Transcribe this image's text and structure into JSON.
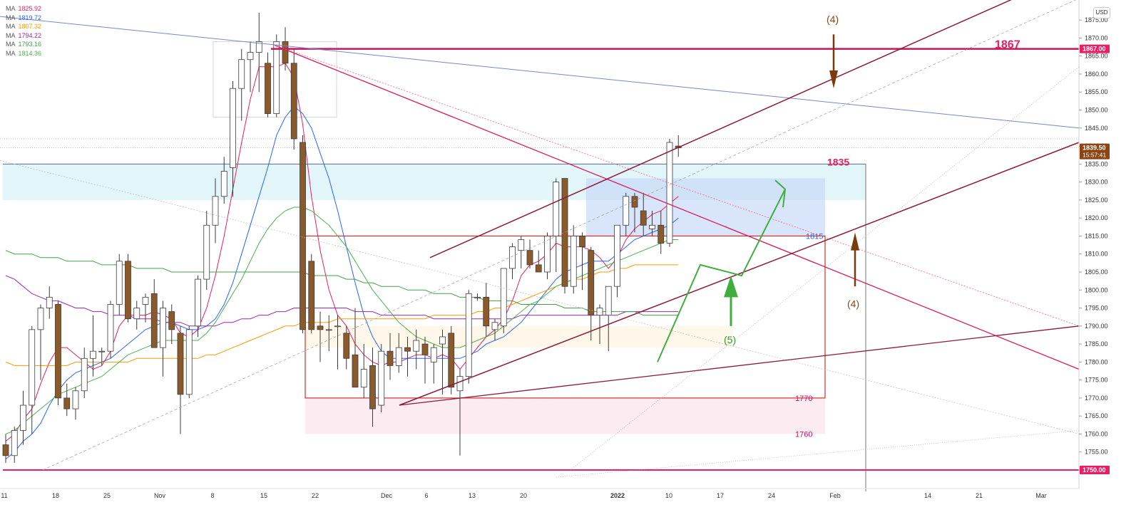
{
  "currency": "USD",
  "legend": [
    {
      "label": "MA",
      "value": "1825.92",
      "color": "#e91e63"
    },
    {
      "label": "MA",
      "value": "1819.72",
      "color": "#2962ff"
    },
    {
      "label": "MA",
      "value": "1807.32",
      "color": "#ff9800"
    },
    {
      "label": "MA",
      "value": "1794.22",
      "color": "#9c27b0"
    },
    {
      "label": "MA",
      "value": "1793.16",
      "color": "#43a047"
    },
    {
      "label": "MA",
      "value": "1814.36",
      "color": "#4caf50"
    }
  ],
  "price_tags": [
    {
      "text": "1867.00",
      "price": 1867,
      "bg": "#e91e63",
      "fg": "#ffffff"
    },
    {
      "text": "1839.50",
      "sub": "15:57:41",
      "price": 1839.5,
      "bg": "#8b4513",
      "fg": "#ffffff"
    },
    {
      "text": "1750.00",
      "price": 1750,
      "bg": "#e91e63",
      "fg": "#ffffff"
    }
  ],
  "annotations": [
    {
      "text": "1867",
      "color": "#e91e63"
    },
    {
      "text": "1835",
      "color": "#e91e63"
    },
    {
      "text": "1815",
      "color": "#2962ff"
    },
    {
      "text": "1770",
      "color": "#c2185b"
    },
    {
      "text": "1760",
      "color": "#c2185b"
    },
    {
      "text": "(4)",
      "color": "#8b4513"
    },
    {
      "text": "(4)",
      "color": "#8b4513"
    },
    {
      "text": "(5)",
      "color": "#2e9e2e"
    }
  ],
  "chart_data": {
    "type": "candlestick",
    "ylim": [
      1748,
      1880
    ],
    "y_ticks": [
      1750,
      1755,
      1760,
      1765,
      1770,
      1775,
      1780,
      1785,
      1790,
      1795,
      1800,
      1805,
      1810,
      1815,
      1820,
      1825,
      1830,
      1835,
      1840,
      1845,
      1850,
      1855,
      1860,
      1865,
      1870,
      1875
    ],
    "x_ticks": [
      "11",
      "18",
      "25",
      "Nov",
      "8",
      "15",
      "22",
      "Dec",
      "6",
      "13",
      "20",
      "2022",
      "10",
      "17",
      "24",
      "Feb",
      "14",
      "21",
      "Mar"
    ],
    "candles": [
      {
        "o": 1757,
        "h": 1760,
        "l": 1752,
        "c": 1754
      },
      {
        "o": 1754,
        "h": 1762,
        "l": 1752,
        "c": 1761
      },
      {
        "o": 1761,
        "h": 1772,
        "l": 1757,
        "c": 1768
      },
      {
        "o": 1768,
        "h": 1790,
        "l": 1760,
        "c": 1789
      },
      {
        "o": 1789,
        "h": 1796,
        "l": 1775,
        "c": 1795
      },
      {
        "o": 1795,
        "h": 1801,
        "l": 1792,
        "c": 1798
      },
      {
        "o": 1796,
        "h": 1797,
        "l": 1768,
        "c": 1770
      },
      {
        "o": 1770,
        "h": 1774,
        "l": 1765,
        "c": 1767
      },
      {
        "o": 1767,
        "h": 1773,
        "l": 1764,
        "c": 1772
      },
      {
        "o": 1772,
        "h": 1784,
        "l": 1770,
        "c": 1781
      },
      {
        "o": 1781,
        "h": 1793,
        "l": 1776,
        "c": 1783
      },
      {
        "o": 1783,
        "h": 1784,
        "l": 1779,
        "c": 1783
      },
      {
        "o": 1783,
        "h": 1797,
        "l": 1781,
        "c": 1796
      },
      {
        "o": 1796,
        "h": 1810,
        "l": 1793,
        "c": 1808
      },
      {
        "o": 1808,
        "h": 1810,
        "l": 1791,
        "c": 1792
      },
      {
        "o": 1792,
        "h": 1797,
        "l": 1789,
        "c": 1795
      },
      {
        "o": 1796,
        "h": 1799,
        "l": 1791,
        "c": 1798
      },
      {
        "o": 1799,
        "h": 1803,
        "l": 1784,
        "c": 1784
      },
      {
        "o": 1784,
        "h": 1797,
        "l": 1776,
        "c": 1795
      },
      {
        "o": 1794,
        "h": 1796,
        "l": 1785,
        "c": 1789
      },
      {
        "o": 1788,
        "h": 1790,
        "l": 1760,
        "c": 1771
      },
      {
        "o": 1771,
        "h": 1790,
        "l": 1770,
        "c": 1789
      },
      {
        "o": 1790,
        "h": 1804,
        "l": 1787,
        "c": 1803
      },
      {
        "o": 1803,
        "h": 1822,
        "l": 1800,
        "c": 1818
      },
      {
        "o": 1818,
        "h": 1831,
        "l": 1813,
        "c": 1826
      },
      {
        "o": 1826,
        "h": 1837,
        "l": 1824,
        "c": 1833
      },
      {
        "o": 1834,
        "h": 1858,
        "l": 1826,
        "c": 1856
      },
      {
        "o": 1856,
        "h": 1867,
        "l": 1847,
        "c": 1864
      },
      {
        "o": 1864,
        "h": 1869,
        "l": 1855,
        "c": 1866
      },
      {
        "o": 1866,
        "h": 1877,
        "l": 1855,
        "c": 1869
      },
      {
        "o": 1863,
        "h": 1866,
        "l": 1848,
        "c": 1849
      },
      {
        "o": 1849,
        "h": 1871,
        "l": 1848,
        "c": 1869
      },
      {
        "o": 1869,
        "h": 1873,
        "l": 1861,
        "c": 1863
      },
      {
        "o": 1863,
        "h": 1867,
        "l": 1839,
        "c": 1842
      },
      {
        "o": 1841,
        "h": 1843,
        "l": 1788,
        "c": 1789
      },
      {
        "o": 1808,
        "h": 1810,
        "l": 1788,
        "c": 1789
      },
      {
        "o": 1790,
        "h": 1794,
        "l": 1780,
        "c": 1789
      },
      {
        "o": 1789,
        "h": 1793,
        "l": 1783,
        "c": 1789
      },
      {
        "o": 1790,
        "h": 1793,
        "l": 1778,
        "c": 1790
      },
      {
        "o": 1788,
        "h": 1790,
        "l": 1778,
        "c": 1781
      },
      {
        "o": 1782,
        "h": 1795,
        "l": 1774,
        "c": 1773
      },
      {
        "o": 1773,
        "h": 1785,
        "l": 1770,
        "c": 1778
      },
      {
        "o": 1779,
        "h": 1784,
        "l": 1762,
        "c": 1767
      },
      {
        "o": 1768,
        "h": 1785,
        "l": 1766,
        "c": 1783
      },
      {
        "o": 1783,
        "h": 1788,
        "l": 1775,
        "c": 1779
      },
      {
        "o": 1779,
        "h": 1788,
        "l": 1777,
        "c": 1784
      },
      {
        "o": 1784,
        "h": 1787,
        "l": 1776,
        "c": 1783
      },
      {
        "o": 1783,
        "h": 1789,
        "l": 1778,
        "c": 1786
      },
      {
        "o": 1785,
        "h": 1787,
        "l": 1774,
        "c": 1782
      },
      {
        "o": 1780,
        "h": 1785,
        "l": 1774,
        "c": 1784
      },
      {
        "o": 1785,
        "h": 1789,
        "l": 1771,
        "c": 1787
      },
      {
        "o": 1788,
        "h": 1790,
        "l": 1771,
        "c": 1773
      },
      {
        "o": 1772,
        "h": 1778,
        "l": 1754,
        "c": 1776
      },
      {
        "o": 1776,
        "h": 1800,
        "l": 1774,
        "c": 1799
      },
      {
        "o": 1798,
        "h": 1799,
        "l": 1797,
        "c": 1798
      },
      {
        "o": 1798,
        "h": 1802,
        "l": 1787,
        "c": 1790
      },
      {
        "o": 1789,
        "h": 1792,
        "l": 1786,
        "c": 1791
      },
      {
        "o": 1790,
        "h": 1806,
        "l": 1788,
        "c": 1806
      },
      {
        "o": 1806,
        "h": 1813,
        "l": 1803,
        "c": 1812
      },
      {
        "o": 1811,
        "h": 1815,
        "l": 1806,
        "c": 1814
      },
      {
        "o": 1811,
        "h": 1814,
        "l": 1806,
        "c": 1807
      },
      {
        "o": 1807,
        "h": 1811,
        "l": 1805,
        "c": 1805
      },
      {
        "o": 1805,
        "h": 1816,
        "l": 1803,
        "c": 1815
      },
      {
        "o": 1815,
        "h": 1831,
        "l": 1805,
        "c": 1830
      },
      {
        "o": 1831,
        "h": 1831,
        "l": 1799,
        "c": 1801
      },
      {
        "o": 1801,
        "h": 1818,
        "l": 1799,
        "c": 1815
      },
      {
        "o": 1815,
        "h": 1816,
        "l": 1800,
        "c": 1812
      },
      {
        "o": 1811,
        "h": 1812,
        "l": 1786,
        "c": 1793
      },
      {
        "o": 1793,
        "h": 1796,
        "l": 1785,
        "c": 1795
      },
      {
        "o": 1793,
        "h": 1801,
        "l": 1783,
        "c": 1801
      },
      {
        "o": 1801,
        "h": 1817,
        "l": 1798,
        "c": 1818
      },
      {
        "o": 1818,
        "h": 1827,
        "l": 1815,
        "c": 1826
      },
      {
        "o": 1826,
        "h": 1827,
        "l": 1816,
        "c": 1823
      },
      {
        "o": 1822,
        "h": 1827,
        "l": 1815,
        "c": 1818
      },
      {
        "o": 1817,
        "h": 1822,
        "l": 1815,
        "c": 1818
      },
      {
        "o": 1818,
        "h": 1822,
        "l": 1810,
        "c": 1813
      },
      {
        "o": 1813,
        "h": 1842,
        "l": 1812,
        "c": 1841
      },
      {
        "o": 1840,
        "h": 1843,
        "l": 1837,
        "c": 1839.5
      }
    ],
    "moving_averages": [
      {
        "color": "#e91e63",
        "values": [
          1758,
          1760,
          1764,
          1767,
          1774,
          1780,
          1784,
          1784,
          1782,
          1780,
          1778,
          1779,
          1783,
          1790,
          1793,
          1793,
          1793,
          1794,
          1793,
          1792,
          1788,
          1787,
          1789,
          1795,
          1804,
          1815,
          1828,
          1841,
          1853,
          1862,
          1862,
          1862,
          1863,
          1859,
          1846,
          1826,
          1811,
          1800,
          1793,
          1790,
          1785,
          1782,
          1780,
          1779,
          1780,
          1780,
          1781,
          1782,
          1782,
          1781,
          1782,
          1781,
          1778,
          1781,
          1784,
          1787,
          1789,
          1792,
          1797,
          1804,
          1807,
          1808,
          1810,
          1813,
          1812,
          1812,
          1812,
          1811,
          1809,
          1806,
          1809,
          1814,
          1817,
          1819,
          1821,
          1822,
          1824,
          1826
        ]
      },
      {
        "color": "#2962ff",
        "values": [
          1753,
          1755,
          1758,
          1760,
          1763,
          1768,
          1772,
          1775,
          1777,
          1778,
          1779,
          1780,
          1781,
          1783,
          1785,
          1787,
          1789,
          1790,
          1791,
          1791,
          1790,
          1789,
          1789,
          1790,
          1792,
          1796,
          1802,
          1810,
          1818,
          1826,
          1834,
          1843,
          1848,
          1851,
          1849,
          1845,
          1838,
          1831,
          1822,
          1812,
          1802,
          1793,
          1787,
          1783,
          1781,
          1781,
          1781,
          1781,
          1781,
          1781,
          1781,
          1781,
          1781,
          1782,
          1783,
          1785,
          1786,
          1787,
          1789,
          1791,
          1794,
          1797,
          1800,
          1803,
          1805,
          1806,
          1807,
          1808,
          1808,
          1808,
          1810,
          1812,
          1814,
          1815,
          1816,
          1817,
          1818,
          1820
        ]
      },
      {
        "color": "#ff9800",
        "values": [
          1780,
          1779,
          1779,
          1779,
          1779,
          1779,
          1779,
          1779,
          1780,
          1780,
          1780,
          1780,
          1780,
          1780,
          1780,
          1781,
          1781,
          1781,
          1781,
          1781,
          1781,
          1781,
          1781,
          1782,
          1782,
          1783,
          1784,
          1785,
          1786,
          1787,
          1788,
          1789,
          1790,
          1790,
          1791,
          1791,
          1791,
          1791,
          1792,
          1792,
          1792,
          1792,
          1792,
          1792,
          1792,
          1792,
          1792,
          1792,
          1792,
          1793,
          1793,
          1793,
          1793,
          1793,
          1794,
          1794,
          1795,
          1795,
          1796,
          1797,
          1798,
          1799,
          1800,
          1801,
          1802,
          1803,
          1803,
          1804,
          1805,
          1805,
          1806,
          1806,
          1807,
          1807,
          1807,
          1807,
          1807,
          1807
        ]
      },
      {
        "color": "#9c27b0",
        "values": [
          1804,
          1803,
          1801,
          1799,
          1798,
          1797,
          1797,
          1796,
          1795,
          1795,
          1794,
          1794,
          1793,
          1793,
          1793,
          1792,
          1792,
          1792,
          1791,
          1791,
          1791,
          1790,
          1790,
          1790,
          1790,
          1791,
          1791,
          1792,
          1792,
          1793,
          1793,
          1794,
          1794,
          1795,
          1795,
          1795,
          1795,
          1795,
          1795,
          1795,
          1794,
          1794,
          1794,
          1793,
          1793,
          1793,
          1793,
          1793,
          1793,
          1792,
          1792,
          1792,
          1792,
          1792,
          1792,
          1792,
          1792,
          1792,
          1792,
          1793,
          1793,
          1793,
          1793,
          1793,
          1793,
          1793,
          1793,
          1793,
          1793,
          1793,
          1793,
          1794,
          1794,
          1794,
          1794,
          1794,
          1794,
          1794
        ]
      },
      {
        "color": "#43a047",
        "values": [
          1811,
          1810,
          1810,
          1810,
          1809,
          1809,
          1809,
          1808,
          1808,
          1808,
          1808,
          1807,
          1807,
          1807,
          1807,
          1806,
          1806,
          1806,
          1806,
          1805,
          1805,
          1805,
          1805,
          1805,
          1805,
          1805,
          1805,
          1805,
          1805,
          1805,
          1805,
          1805,
          1805,
          1805,
          1805,
          1804,
          1804,
          1804,
          1804,
          1803,
          1803,
          1802,
          1802,
          1801,
          1801,
          1801,
          1800,
          1800,
          1800,
          1799,
          1799,
          1799,
          1798,
          1798,
          1798,
          1797,
          1797,
          1797,
          1797,
          1796,
          1796,
          1796,
          1796,
          1796,
          1795,
          1795,
          1795,
          1794,
          1794,
          1794,
          1794,
          1794,
          1794,
          1793,
          1793,
          1793,
          1793,
          1793
        ]
      },
      {
        "color": "#4caf50",
        "values": [
          1760,
          1761,
          1763,
          1765,
          1767,
          1769,
          1771,
          1772,
          1773,
          1774,
          1775,
          1776,
          1778,
          1780,
          1782,
          1783,
          1784,
          1785,
          1786,
          1786,
          1786,
          1786,
          1786,
          1788,
          1791,
          1795,
          1799,
          1803,
          1808,
          1813,
          1817,
          1820,
          1822,
          1823,
          1823,
          1822,
          1820,
          1818,
          1815,
          1812,
          1808,
          1804,
          1800,
          1797,
          1794,
          1791,
          1789,
          1787,
          1786,
          1785,
          1784,
          1784,
          1784,
          1785,
          1786,
          1787,
          1788,
          1790,
          1792,
          1794,
          1796,
          1797,
          1799,
          1801,
          1802,
          1803,
          1804,
          1805,
          1806,
          1807,
          1808,
          1809,
          1810,
          1811,
          1812,
          1813,
          1814,
          1814
        ]
      }
    ]
  }
}
